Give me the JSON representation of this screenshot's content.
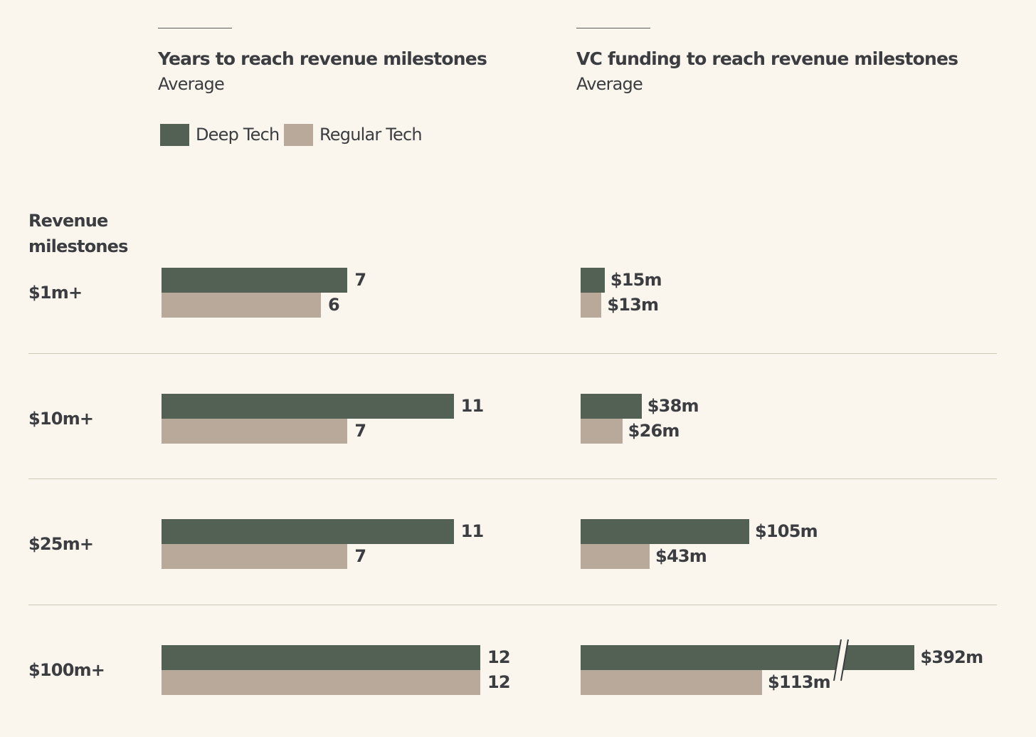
{
  "colors": {
    "deep": "#536155",
    "regular": "#B8A99A",
    "background": "#FAF6EE"
  },
  "left_title": "Years to reach revenue milestones",
  "left_subtitle": "Average",
  "right_title": "VC funding to reach revenue milestones",
  "right_subtitle": "Average",
  "legend": [
    {
      "label": "Deep Tech"
    },
    {
      "label": "Regular Tech"
    }
  ],
  "row_header": "Revenue milestones",
  "chart_data": [
    {
      "type": "bar",
      "title": "Years to reach revenue milestones",
      "subtitle": "Average",
      "categories": [
        "$1m+",
        "$10m+",
        "$25m+",
        "$100m+"
      ],
      "series": [
        {
          "name": "Deep Tech",
          "values": [
            7,
            11,
            11,
            12
          ],
          "labels": [
            "7",
            "11",
            "11",
            "12"
          ]
        },
        {
          "name": "Regular Tech",
          "values": [
            6,
            7,
            7,
            12
          ],
          "labels": [
            "6",
            "7",
            "7",
            "12"
          ]
        }
      ],
      "xlim": [
        0,
        12
      ]
    },
    {
      "type": "bar",
      "title": "VC funding to reach revenue milestones",
      "subtitle": "Average",
      "categories": [
        "$1m+",
        "$10m+",
        "$25m+",
        "$100m+"
      ],
      "series": [
        {
          "name": "Deep Tech",
          "values": [
            15,
            38,
            105,
            392
          ],
          "labels": [
            "$15m",
            "$38m",
            "$105m",
            "$392m"
          ]
        },
        {
          "name": "Regular Tech",
          "values": [
            13,
            26,
            43,
            113
          ],
          "labels": [
            "$13m",
            "$26m",
            "$43m",
            "$113m"
          ]
        }
      ],
      "axis_break_above": 208,
      "unit": "$m"
    }
  ]
}
